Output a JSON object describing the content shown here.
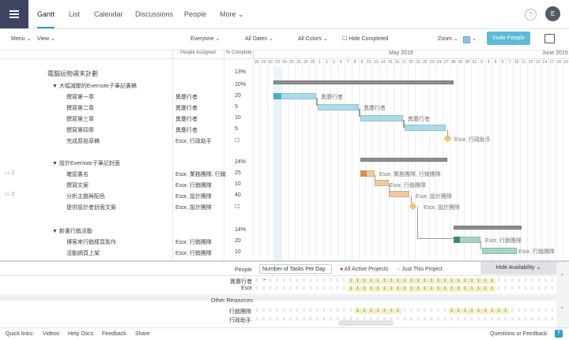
{
  "nav": {
    "tabs": [
      "Gantt",
      "List",
      "Calendar",
      "Discussions",
      "People",
      "More"
    ],
    "active": "Gantt",
    "avatar_letter": "E",
    "help": "?"
  },
  "toolbar": {
    "menu": "Menu",
    "view": "View",
    "everyone": "Everyone",
    "all_dates": "All Dates",
    "all_colors": "All Colors",
    "hide_completed": "Hide Completed",
    "zoom": "Zoom",
    "invite": "Invite People"
  },
  "table": {
    "col_people": "People Assigned",
    "col_pct": "% Complete",
    "rows": [
      {
        "name": "電腦玩物週末計劃",
        "people": "",
        "pct": "13%",
        "level": 0
      },
      {
        "name": "▼ 大幅減壓的Evernote子筆記書稿",
        "people": "",
        "pct": "10%",
        "level": 1
      },
      {
        "name": "撰寫第一章",
        "people": "異塵行者",
        "pct": "20",
        "level": 2
      },
      {
        "name": "撰寫第二章",
        "people": "異塵行者",
        "pct": "5",
        "level": 2
      },
      {
        "name": "撰寫第三章",
        "people": "異塵行者",
        "pct": "10",
        "level": 2
      },
      {
        "name": "撰寫第四章",
        "people": "異塵行者",
        "pct": "5",
        "level": 2
      },
      {
        "name": "完成原始草稿",
        "people": "Esor, 行政助手",
        "pct": "☐",
        "level": 2
      },
      {
        "name": "",
        "people": "",
        "pct": "",
        "level": 0
      },
      {
        "name": "▼ 設計Evernote子筆記封面",
        "people": "",
        "pct": "24%",
        "level": 1
      },
      {
        "name": "確認書名",
        "people": "Esor, 業務團隊, 行銷",
        "pct": "25",
        "level": 2
      },
      {
        "name": "撰寫文案",
        "people": "Esor, 行銷團隊",
        "pct": "10",
        "level": 2
      },
      {
        "name": "分析主題與配色",
        "people": "Esor, 設計團隊",
        "pct": "40",
        "level": 2
      },
      {
        "name": "提供設計者封面文案",
        "people": "Esor, 設計團隊",
        "pct": "☐",
        "level": 2
      },
      {
        "name": "",
        "people": "",
        "pct": "",
        "level": 0
      },
      {
        "name": "▼ 新書行銷活動",
        "people": "",
        "pct": "14%",
        "level": 1
      },
      {
        "name": "博客來行銷樣頁製作",
        "people": "Esor, 行銷團隊",
        "pct": "20",
        "level": 2
      },
      {
        "name": "活動網頁上架",
        "people": "Esor, 行銷團隊",
        "pct": "10",
        "level": 2
      }
    ],
    "side_counts": [
      "2",
      "2"
    ]
  },
  "timeline": {
    "month_may": "May 2019",
    "month_june": "June 2019",
    "days": [
      "18",
      "19",
      "22",
      "23",
      "24",
      "25",
      "26",
      "29",
      "30",
      "1",
      "2",
      "3",
      "6",
      "7",
      "8",
      "9",
      "10",
      "13",
      "14",
      "15",
      "16",
      "17",
      "20",
      "21",
      "22",
      "23",
      "24",
      "27",
      "28",
      "29",
      "30",
      "31",
      "3",
      "4",
      "5",
      "6",
      "7",
      "10",
      "11",
      "12",
      "13",
      "14",
      "17",
      "18",
      "19"
    ],
    "labels": [
      "異塵行者",
      "異塵行者",
      "異塵行者",
      "Esor, 行政助手",
      "Esor, 業務團隊, 行銷團隊",
      "Esor, 行銷團隊",
      "Esor, 設計團隊",
      "Esor, 設計團隊",
      "Esor, 行銷團隊",
      "Esor, 行銷團隊"
    ]
  },
  "workload": {
    "people_label": "People",
    "metric": "Number of Tasks Per Day",
    "all_active": "All Active Projects",
    "this_project": "Just This Project",
    "hide_availability": "Hide Availability",
    "people": [
      "異塵行者",
      "Esor"
    ],
    "other_label": "Other Resources",
    "resources": [
      "行銷團隊",
      "行政助手"
    ]
  },
  "footer": {
    "quick_links": "Quick links:",
    "videos": "Videos",
    "help_docs": "Help Docs",
    "feedback": "Feedback",
    "share": "Share",
    "questions": "Questions or Feedback"
  }
}
